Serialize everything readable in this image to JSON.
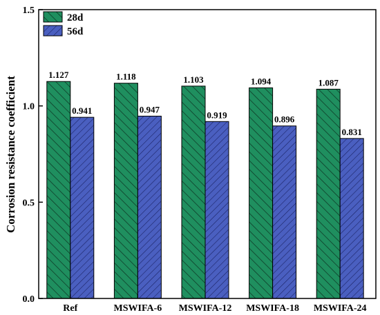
{
  "chart_data": {
    "type": "bar",
    "title": "",
    "xlabel": "",
    "ylabel": "Corrosion resistance coefficient",
    "ylim": [
      0.0,
      1.5
    ],
    "yticks": [
      "0.0",
      "0.5",
      "1.0",
      "1.5"
    ],
    "grid": false,
    "legend_position": "top-left",
    "categories": [
      "Ref",
      "MSWIFA-6",
      "MSWIFA-12",
      "MSWIFA-18",
      "MSWIFA-24"
    ],
    "series": [
      {
        "name": "28d",
        "values": [
          1.127,
          1.118,
          1.103,
          1.094,
          1.087
        ],
        "labels": [
          "1.127",
          "1.118",
          "1.103",
          "1.094",
          "1.087"
        ],
        "color": "#1f8f5f",
        "pattern": "diagonal-hatch-up"
      },
      {
        "name": "56d",
        "values": [
          0.941,
          0.947,
          0.919,
          0.896,
          0.831
        ],
        "labels": [
          "0.941",
          "0.947",
          "0.919",
          "0.896",
          "0.831"
        ],
        "color": "#4a5fc0",
        "pattern": "diagonal-hatch-down"
      }
    ]
  }
}
